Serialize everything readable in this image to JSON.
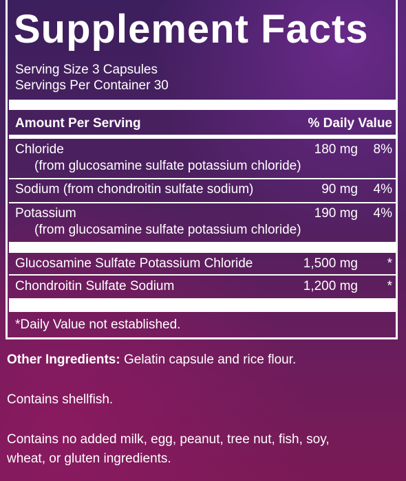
{
  "header": {
    "title": "Supplement Facts",
    "serving_size": "Serving Size 3 Capsules",
    "servings_per_container": "Servings Per Container 30"
  },
  "table": {
    "columns": [
      "Amount Per Serving",
      "% Daily Value"
    ],
    "rows": [
      {
        "name": "Chloride",
        "sub": "(from glucosamine sulfate potassium chloride)",
        "amount": "180 mg",
        "dv": "8%"
      },
      {
        "name": "Sodium (from chondroitin sulfate sodium)",
        "amount": "90 mg",
        "dv": "4%"
      },
      {
        "name": "Potassium",
        "sub": "(from glucosamine sulfate potassium chloride)",
        "amount": "190 mg",
        "dv": "4%"
      },
      {
        "name": "Glucosamine Sulfate Potassium Chloride",
        "amount": "1,500 mg",
        "dv": "*"
      },
      {
        "name": "Chondroitin Sulfate Sodium",
        "amount": "1,200 mg",
        "dv": "*"
      }
    ]
  },
  "footnote": "*Daily Value not established.",
  "other_ingredients": {
    "label": "Other Ingredients:",
    "text": "Gelatin capsule and rice flour."
  },
  "notes": [
    "Contains shellfish.",
    "Contains no added milk, egg, peanut, tree nut, fish, soy,",
    "wheat, or gluten ingredients."
  ]
}
